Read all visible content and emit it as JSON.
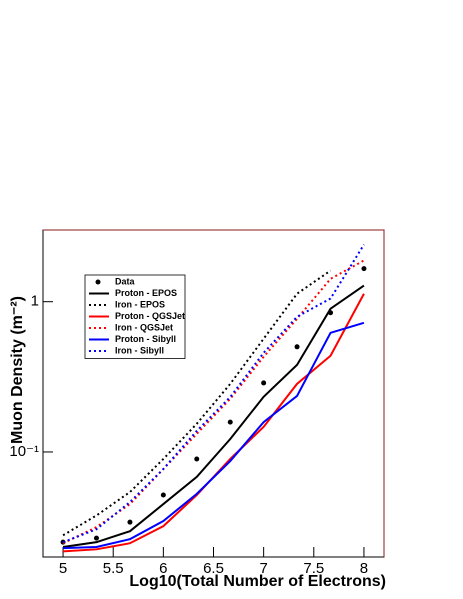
{
  "chart_data": {
    "type": "line",
    "x_label": "Log10(Total Number of Electrons)",
    "y_label": "Muon Density (m⁻²)",
    "x": [
      5,
      5.333,
      5.667,
      6,
      6.333,
      6.667,
      7,
      7.333,
      7.667,
      8
    ],
    "series": [
      {
        "name": "Data",
        "color": "#000000",
        "style": "marker",
        "values": [
          0.0251,
          0.0267,
          0.0341,
          0.0517,
          0.0898,
          0.158,
          0.288,
          0.501,
          0.845,
          1.66
        ]
      },
      {
        "name": "Proton - EPOS",
        "color": "#000000",
        "style": "solid",
        "values": [
          0.0233,
          0.0251,
          0.0297,
          0.045,
          0.0682,
          0.122,
          0.233,
          0.38,
          0.898,
          1.28
        ]
      },
      {
        "name": "Iron - EPOS",
        "color": "#000000",
        "style": "dotted",
        "values": [
          0.0279,
          0.0378,
          0.0541,
          0.0898,
          0.154,
          0.284,
          0.567,
          1.13,
          1.61,
          null
        ]
      },
      {
        "name": "Proton - QGSJet",
        "color": "#ff0000",
        "style": "solid",
        "values": [
          0.0218,
          0.0225,
          0.0247,
          0.0321,
          0.0517,
          0.0898,
          0.147,
          0.284,
          0.437,
          1.13
        ]
      },
      {
        "name": "Iron - QGSJet",
        "color": "#ff0000",
        "style": "dotted",
        "values": [
          0.0247,
          0.0316,
          0.045,
          0.077,
          0.132,
          0.226,
          0.43,
          0.77,
          1.42,
          1.88
        ]
      },
      {
        "name": "Proton - Sibyll",
        "color": "#0000ff",
        "style": "solid",
        "values": [
          0.0229,
          0.0233,
          0.0263,
          0.0347,
          0.0526,
          0.087,
          0.158,
          0.236,
          0.621,
          0.724
        ]
      },
      {
        "name": "Iron - Sibyll",
        "color": "#0000ff",
        "style": "dotted",
        "values": [
          0.0251,
          0.0306,
          0.0464,
          0.077,
          0.138,
          0.232,
          0.457,
          0.794,
          1.05,
          2.4
        ]
      }
    ],
    "xlim": [
      4.8,
      8.2
    ],
    "xticks": [
      5,
      5.5,
      6,
      6.5,
      7,
      7.5,
      8
    ],
    "ylim": [
      0.02,
      3
    ],
    "ylog": true,
    "yticks": [
      {
        "value": 0.1,
        "label": "10⁻¹"
      },
      1
    ],
    "legend": "upper-left",
    "grid": false
  }
}
